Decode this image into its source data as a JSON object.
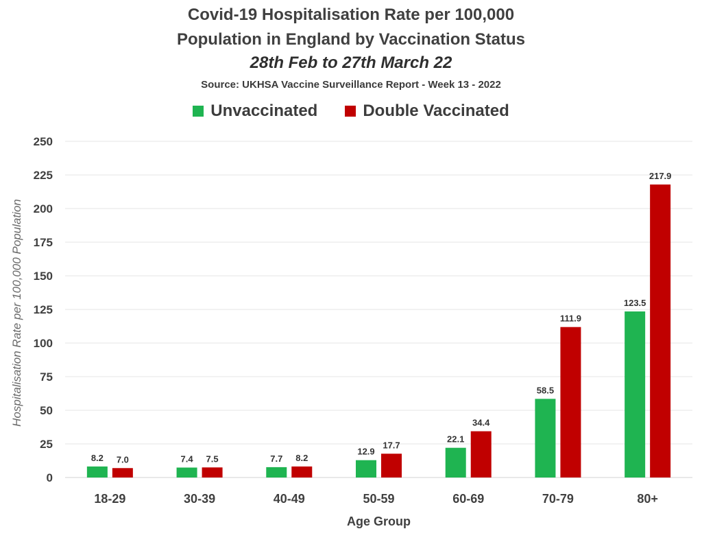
{
  "title_line1": "Covid-19 Hospitalisation Rate per 100,000",
  "title_line2": "Population in England by Vaccination Status",
  "subtitle": "28th Feb to 27th March 22",
  "source": "Source: UKHSA Vaccine Surveillance Report - Week 13 - 2022",
  "colors": {
    "unvaccinated": "#1fb451",
    "double_vaccinated": "#c00000",
    "grid": "#e6e6e6"
  },
  "chart_data": {
    "type": "bar",
    "title": "Covid-19 Hospitalisation Rate per 100,000 Population in England by Vaccination Status",
    "subtitle": "28th Feb to 27th March 22",
    "xlabel": "Age Group",
    "ylabel": "Hospitalisation Rate per 100,000 Population",
    "ylim": [
      0,
      250
    ],
    "yticks": [
      0,
      25,
      50,
      75,
      100,
      125,
      150,
      175,
      200,
      225,
      250
    ],
    "grid": true,
    "legend_position": "top-center",
    "categories": [
      "18-29",
      "30-39",
      "40-49",
      "50-59",
      "60-69",
      "70-79",
      "80+"
    ],
    "series": [
      {
        "name": "Unvaccinated",
        "values": [
          8.2,
          7.4,
          7.7,
          12.9,
          22.1,
          58.5,
          123.5
        ],
        "labels": [
          "8.2",
          "7.4",
          "7.7",
          "12.9",
          "22.1",
          "58.5",
          "123.5"
        ]
      },
      {
        "name": "Double Vaccinated",
        "values": [
          7.0,
          7.5,
          8.2,
          17.7,
          34.4,
          111.9,
          217.9
        ],
        "labels": [
          "7.0",
          "7.5",
          "8.2",
          "17.7",
          "34.4",
          "111.9",
          "217.9"
        ]
      }
    ]
  }
}
